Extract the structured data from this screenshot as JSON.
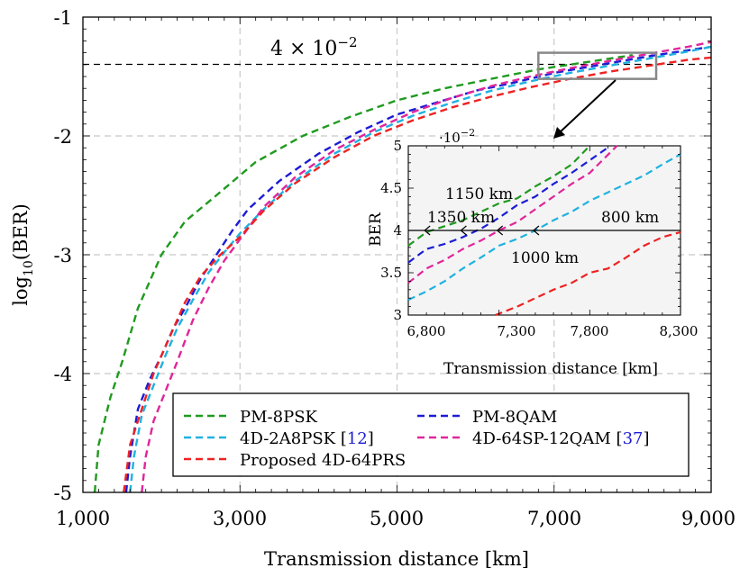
{
  "chart_data": [
    {
      "type": "line",
      "xlabel": "Transmission distance [km]",
      "ylabel": "log10(BER)",
      "ylabel_base": "log",
      "ylabel_sub": "10",
      "ylabel_tail": "(BER)",
      "xlim": [
        1000,
        9000
      ],
      "ylim": [
        -5,
        -1
      ],
      "xticks": [
        1000,
        3000,
        5000,
        7000,
        9000
      ],
      "xtick_labels": [
        "1,000",
        "3,000",
        "5,000",
        "7,000",
        "9,000"
      ],
      "yticks": [
        -5,
        -4,
        -3,
        -2,
        -1
      ],
      "ytick_labels": [
        "-5",
        "-4",
        "-3",
        "-2",
        "-1"
      ],
      "grid": true,
      "threshold": {
        "value": -1.398,
        "label_base": "4 × 10",
        "label_exp": "−2"
      },
      "legend": {
        "placement": "bottom-center",
        "entries": [
          "PM-8PSK",
          "PM-8QAM",
          "4D-2A8PSK [12]",
          "4D-64SP-12QAM [37]",
          "Proposed 4D-64PRS"
        ],
        "entry_main": [
          "PM-8PSK",
          "PM-8QAM",
          "4D-2A8PSK [",
          "4D-64SP-12QAM [",
          "Proposed 4D-64PRS"
        ],
        "entry_ref": [
          "",
          "",
          "12",
          "37",
          ""
        ],
        "entry_close": [
          "",
          "",
          "]",
          "]",
          ""
        ]
      },
      "zoom_box": {
        "x": [
          6800,
          8300
        ],
        "y": [
          -1.52,
          -1.3
        ]
      },
      "series": [
        {
          "name": "PM-8PSK",
          "color": "#1f9a1f",
          "x": [
            1150,
            1200,
            1350,
            1500,
            1700,
            2000,
            2300,
            2700,
            3200,
            3800,
            4400,
            5000,
            5600,
            6200,
            6800,
            7400,
            8000
          ],
          "y": [
            -5.0,
            -4.6,
            -4.2,
            -3.9,
            -3.45,
            -3.0,
            -2.72,
            -2.5,
            -2.22,
            -2.0,
            -1.84,
            -1.7,
            -1.6,
            -1.52,
            -1.44,
            -1.38,
            -1.32
          ]
        },
        {
          "name": "PM-8QAM",
          "color": "#1c1cd6",
          "x": [
            1550,
            1600,
            1700,
            1850,
            2000,
            2150,
            2300,
            2500,
            2700,
            2900,
            3100,
            3500,
            4000,
            4500,
            5000,
            5500,
            6000,
            6500,
            7000,
            7600,
            8200,
            8800,
            9000
          ],
          "y": [
            -5.0,
            -4.7,
            -4.3,
            -4.05,
            -3.85,
            -3.62,
            -3.45,
            -3.2,
            -3.0,
            -2.8,
            -2.62,
            -2.38,
            -2.15,
            -1.97,
            -1.82,
            -1.72,
            -1.62,
            -1.55,
            -1.47,
            -1.4,
            -1.33,
            -1.27,
            -1.25
          ]
        },
        {
          "name": "4D-2A8PSK [12]",
          "color": "#1fb2e0",
          "x": [
            1600,
            1650,
            1750,
            1900,
            2050,
            2200,
            2400,
            2600,
            2800,
            3000,
            3300,
            3700,
            4200,
            4700,
            5200,
            5700,
            6200,
            6700,
            7200,
            7700,
            8200,
            8700,
            9000
          ],
          "y": [
            -5.0,
            -4.7,
            -4.35,
            -4.1,
            -3.85,
            -3.62,
            -3.38,
            -3.15,
            -2.98,
            -2.82,
            -2.62,
            -2.38,
            -2.15,
            -1.97,
            -1.83,
            -1.72,
            -1.62,
            -1.54,
            -1.47,
            -1.41,
            -1.35,
            -1.29,
            -1.25
          ]
        },
        {
          "name": "4D-64SP-12QAM [37]",
          "color": "#e0259a",
          "x": [
            1750,
            1800,
            1900,
            2050,
            2200,
            2400,
            2600,
            2800,
            3000,
            3300,
            3700,
            4200,
            4700,
            5200,
            5700,
            6200,
            6700,
            7200,
            7700,
            8200,
            8700,
            9000
          ],
          "y": [
            -5.0,
            -4.7,
            -4.4,
            -4.15,
            -3.9,
            -3.55,
            -3.28,
            -3.05,
            -2.87,
            -2.6,
            -2.35,
            -2.12,
            -1.95,
            -1.8,
            -1.68,
            -1.58,
            -1.5,
            -1.43,
            -1.37,
            -1.31,
            -1.25,
            -1.21
          ]
        },
        {
          "name": "Proposed 4D-64PRS",
          "color": "#ee2222",
          "x": [
            1520,
            1600,
            1750,
            1900,
            2100,
            2300,
            2500,
            2750,
            3000,
            3300,
            3700,
            4200,
            4700,
            5200,
            5700,
            6200,
            6700,
            7200,
            7700,
            8200,
            8700,
            9000
          ],
          "y": [
            -5.0,
            -4.6,
            -4.3,
            -4.0,
            -3.7,
            -3.4,
            -3.18,
            -3.0,
            -2.85,
            -2.63,
            -2.4,
            -2.18,
            -2.0,
            -1.87,
            -1.76,
            -1.67,
            -1.59,
            -1.52,
            -1.46,
            -1.41,
            -1.36,
            -1.34
          ]
        }
      ]
    },
    {
      "type": "line",
      "inset": true,
      "xlabel": "Transmission distance [km]",
      "ylabel": "BER",
      "xlim": [
        6800,
        8300
      ],
      "ylim": [
        3,
        5
      ],
      "y_multiplier_base": "·10",
      "y_multiplier_exp": "−2",
      "xticks": [
        6800,
        7300,
        7800,
        8300
      ],
      "xtick_labels": [
        "6,800",
        "7,300",
        "7,800",
        "8,300"
      ],
      "yticks": [
        3,
        3.5,
        4,
        4.5,
        5
      ],
      "ytick_labels": [
        "3",
        "3.5",
        "4",
        "4.5",
        "5"
      ],
      "threshold": {
        "value": 4
      },
      "markers_x": [
        6900,
        7100,
        7300,
        7500
      ],
      "annotations": [
        {
          "text": "1150 km",
          "color": "#1c1cd6"
        },
        {
          "text": "1350 km",
          "color": "#1f9a1f"
        },
        {
          "text": "800 km",
          "color": "#1fb2e0"
        },
        {
          "text": "1000 km",
          "color": "#e0259a"
        }
      ],
      "series": [
        {
          "name": "PM-8PSK",
          "color": "#1f9a1f",
          "x": [
            6800,
            6900,
            7000,
            7100,
            7200,
            7300,
            7400,
            7500,
            7600,
            7700,
            7800
          ],
          "y": [
            3.82,
            3.98,
            4.05,
            4.12,
            4.22,
            4.32,
            4.38,
            4.52,
            4.64,
            4.78,
            5.0
          ]
        },
        {
          "name": "PM-8QAM",
          "color": "#1c1cd6",
          "x": [
            6800,
            6900,
            7000,
            7100,
            7200,
            7300,
            7400,
            7500,
            7600,
            7700,
            7900
          ],
          "y": [
            3.62,
            3.78,
            3.84,
            3.92,
            4.02,
            4.15,
            4.3,
            4.4,
            4.55,
            4.68,
            4.98
          ]
        },
        {
          "name": "4D-2A8PSK [12]",
          "color": "#1fb2e0",
          "x": [
            6800,
            6900,
            7000,
            7100,
            7200,
            7300,
            7400,
            7500,
            7600,
            7700,
            7800,
            7900,
            8000,
            8100,
            8200,
            8300
          ],
          "y": [
            3.18,
            3.28,
            3.4,
            3.55,
            3.68,
            3.82,
            3.9,
            4.0,
            4.12,
            4.22,
            4.35,
            4.45,
            4.55,
            4.65,
            4.78,
            4.9
          ]
        },
        {
          "name": "4D-64SP-12QAM [37]",
          "color": "#e0259a",
          "x": [
            6800,
            6900,
            7000,
            7100,
            7200,
            7300,
            7400,
            7500,
            7600,
            7700,
            7800,
            7950
          ],
          "y": [
            3.38,
            3.55,
            3.65,
            3.78,
            3.88,
            4.0,
            4.1,
            4.25,
            4.4,
            4.55,
            4.68,
            5.0
          ]
        },
        {
          "name": "Proposed 4D-64PRS",
          "color": "#ee2222",
          "x": [
            7280,
            7400,
            7500,
            7600,
            7700,
            7800,
            7900,
            8000,
            8100,
            8200,
            8300
          ],
          "y": [
            3.0,
            3.1,
            3.2,
            3.3,
            3.38,
            3.5,
            3.55,
            3.68,
            3.82,
            3.92,
            3.98
          ]
        }
      ]
    }
  ]
}
